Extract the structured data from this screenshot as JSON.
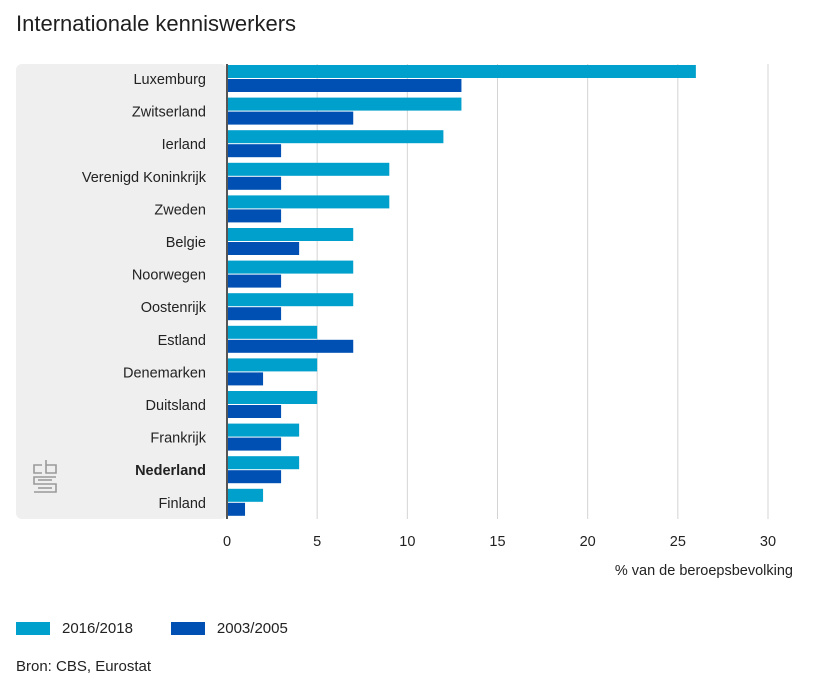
{
  "title": "Internationale kenniswerkers",
  "source": "Bron: CBS, Eurostat",
  "logo": {
    "icon": "cbs-logo-icon",
    "text": "cbs"
  },
  "colors": {
    "series1": "#00a0cc",
    "series2": "#0050b4",
    "panel": "#efefef",
    "grid": "#d4d4d4",
    "axis": "#555555"
  },
  "chart_data": {
    "type": "bar",
    "orientation": "horizontal",
    "categories": [
      "Luxemburg",
      "Zwitserland",
      "Ierland",
      "Verenigd Koninkrijk",
      "Zweden",
      "Belgie",
      "Noorwegen",
      "Oostenrijk",
      "Estland",
      "Denemarken",
      "Duitsland",
      "Frankrijk",
      "Nederland",
      "Finland"
    ],
    "highlight": "Nederland",
    "series": [
      {
        "name": "2016/2018",
        "values": [
          26,
          13,
          12,
          9,
          9,
          7,
          7,
          7,
          5,
          5,
          5,
          4,
          4,
          2
        ]
      },
      {
        "name": "2003/2005",
        "values": [
          13,
          7,
          3,
          3,
          3,
          4,
          3,
          3,
          7,
          2,
          3,
          3,
          3,
          1
        ]
      }
    ],
    "xlabel": "% van de beroepsbevolking",
    "xlim": [
      0,
      30
    ],
    "xticks": [
      0,
      5,
      10,
      15,
      20,
      25,
      30
    ],
    "grid": true,
    "legend": "bottom"
  }
}
